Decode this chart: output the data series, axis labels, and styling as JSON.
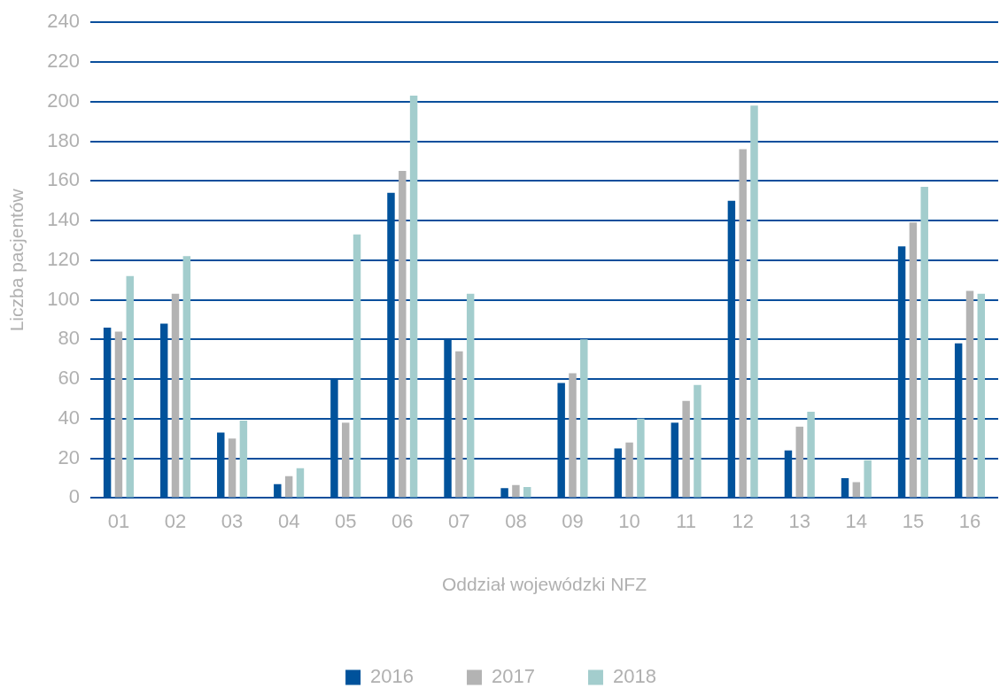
{
  "chart_data": {
    "type": "bar",
    "xlabel": "Oddział wojewódzki NFZ",
    "ylabel": "Liczba pacjentów",
    "categories": [
      "01",
      "02",
      "03",
      "04",
      "05",
      "06",
      "07",
      "08",
      "09",
      "10",
      "11",
      "12",
      "13",
      "14",
      "15",
      "16"
    ],
    "series": [
      {
        "name": "2016",
        "color": "#00529b",
        "values": [
          86,
          88,
          33,
          7,
          60,
          154,
          80,
          5,
          58,
          25,
          38,
          150,
          24,
          10,
          127,
          78
        ]
      },
      {
        "name": "2017",
        "color": "#b3b3b3",
        "values": [
          84,
          103,
          30,
          11,
          38,
          165,
          74,
          6.5,
          63,
          28,
          49,
          176,
          36,
          8,
          139,
          104.5
        ]
      },
      {
        "name": "2018",
        "color": "#a3cdcd",
        "values": [
          112,
          122,
          39,
          15,
          133,
          203,
          103,
          5.5,
          80,
          40,
          57,
          198,
          43.5,
          19,
          157,
          103
        ]
      }
    ],
    "ylim": [
      0,
      240
    ],
    "yticks": [
      0,
      20,
      40,
      60,
      80,
      100,
      120,
      140,
      160,
      180,
      200,
      220,
      240
    ],
    "grid": "y",
    "legend": "bottom"
  }
}
